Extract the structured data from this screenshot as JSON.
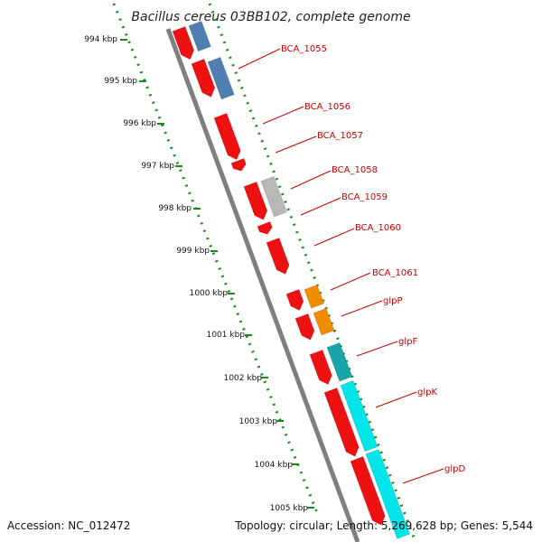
{
  "title": "Bacillus cereus 03BB102, complete genome",
  "footer": {
    "accession": "Accession: NC_012472",
    "topology": "Topology: circular; Length: 5,269,628 bp; Genes: 5,544"
  },
  "colors": {
    "backbone": "#7f7f7f",
    "tick": "#1a8a1a",
    "red": "#ee1111",
    "blue": "#4f7fb0",
    "grey": "#b8b8b8",
    "orange": "#f08c00",
    "cyan": "#00e5ea",
    "teal": "#1aa5a8",
    "label": "#cc0000",
    "leader": "#cc0000"
  },
  "scale_labels": [
    "994 kbp",
    "995 kbp",
    "996 kbp",
    "997 kbp",
    "998 kbp",
    "999 kbp",
    "1000 kbp",
    "1001 kbp",
    "1002 kbp",
    "1003 kbp",
    "1004 kbp",
    "1005 kbp"
  ],
  "gene_labels": [
    "BCA_1055",
    "BCA_1056",
    "BCA_1057",
    "BCA_1058",
    "BCA_1059",
    "BCA_1060",
    "BCA_1061",
    "glpP",
    "glpF",
    "glpK",
    "glpD"
  ]
}
